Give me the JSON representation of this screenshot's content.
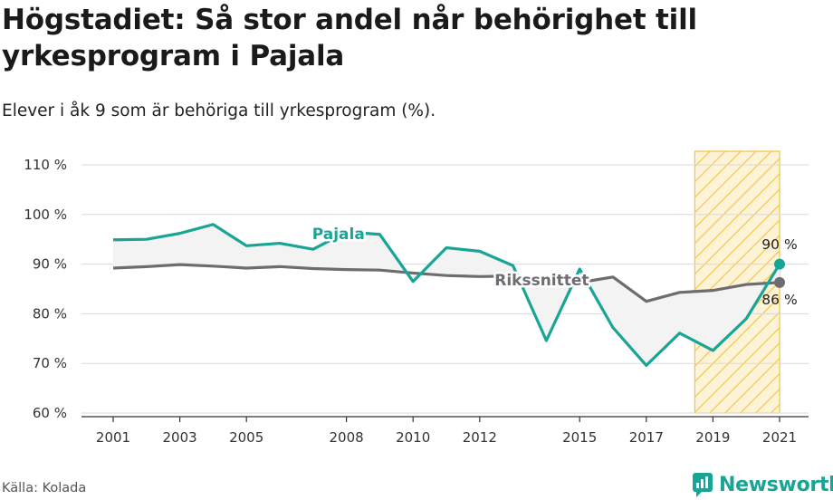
{
  "title": "Högstadiet: Så stor andel når behörighet till yrkesprogram i Pajala",
  "subtitle": "Elever i åk 9 som är behöriga till yrkesprogram (%).",
  "source": "Källa: Kolada",
  "brand": "Newsworthy",
  "colors": {
    "pajala": "#19a596",
    "riket": "#6e6c70",
    "highlight": "#f5c242",
    "grid": "#d9d9d9"
  },
  "chart_data": {
    "type": "line",
    "title": "Högstadiet: Så stor andel når behörighet till yrkesprogram i Pajala",
    "subtitle": "Elever i åk 9 som är behöriga till yrkesprogram (%).",
    "ylim": [
      60,
      110
    ],
    "yticks": [
      60,
      70,
      80,
      90,
      100,
      110
    ],
    "ytick_labels": [
      "60 %",
      "70 %",
      "80 %",
      "90 %",
      "100 %",
      "110 %"
    ],
    "xlim": [
      2000,
      2022
    ],
    "xticks": [
      2001,
      2003,
      2005,
      2008,
      2010,
      2012,
      2015,
      2017,
      2019,
      2021
    ],
    "xtick_labels": [
      "2001",
      "2003",
      "2005",
      "2008",
      "2010",
      "2012",
      "2015",
      "2017",
      "2019",
      "2021"
    ],
    "highlight_range": [
      2019,
      2021
    ],
    "grid": true,
    "series": [
      {
        "name": "Pajala",
        "color": "#19a596",
        "x": [
          2001,
          2002,
          2003,
          2004,
          2005,
          2006,
          2007,
          2008,
          2009,
          2010,
          2011,
          2012,
          2013,
          2014,
          2015,
          2016,
          2017,
          2018,
          2019,
          2020,
          2021
        ],
        "values": [
          94.9,
          95.0,
          96.2,
          98.0,
          93.7,
          94.2,
          93.0,
          96.5,
          96.0,
          86.5,
          93.3,
          92.6,
          89.7,
          74.6,
          89.0,
          77.2,
          69.6,
          76.1,
          72.6,
          79.0,
          90.0
        ]
      },
      {
        "name": "Rikssnittet",
        "color": "#6e6c70",
        "x": [
          2001,
          2002,
          2003,
          2004,
          2005,
          2006,
          2007,
          2008,
          2009,
          2010,
          2011,
          2012,
          2013,
          2014,
          2015,
          2016,
          2017,
          2018,
          2019,
          2020,
          2021
        ],
        "values": [
          89.2,
          89.5,
          89.9,
          89.6,
          89.2,
          89.5,
          89.1,
          88.9,
          88.8,
          88.2,
          87.7,
          87.5,
          87.6,
          87.2,
          86.3,
          87.4,
          82.5,
          84.3,
          84.7,
          85.9,
          86.3
        ]
      }
    ],
    "end_labels": [
      "90 %",
      "86 %"
    ]
  }
}
